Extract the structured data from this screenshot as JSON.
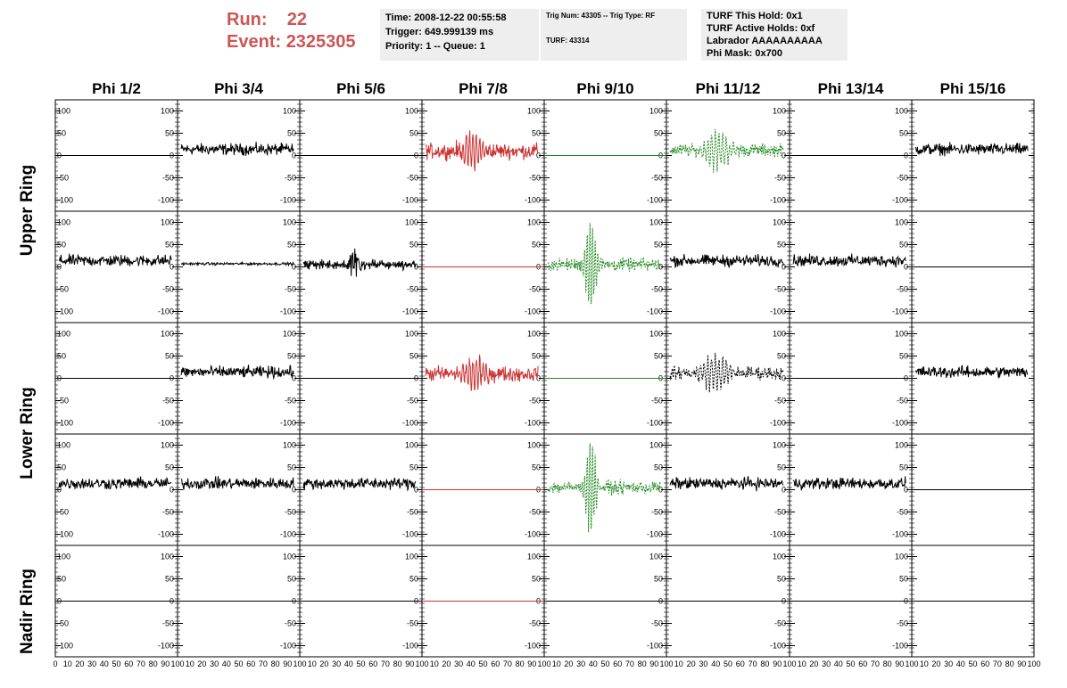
{
  "header": {
    "run_label": "Run:",
    "run_value": "22",
    "event_label": "Event:",
    "event_value": "2325305"
  },
  "time_box": {
    "time": "Time: 2008-12-22 00:55:58",
    "trigger": "Trigger: 649.999139 ms",
    "priority": "Priority: 1 -- Queue: 1"
  },
  "trig_box": {
    "trig": "Trig Num: 43305 -- Trig Type: RF",
    "turf": "TURF: 43314"
  },
  "turf_box": {
    "hold": "TURF This Hold: 0x1",
    "active": "TURF Active Holds: 0xf",
    "labrador": "Labrador AAAAAAAAAA",
    "mask": "Phi Mask: 0x700"
  },
  "chart_data": {
    "type": "line",
    "columns": [
      "Phi 1/2",
      "Phi 3/4",
      "Phi 5/6",
      "Phi 7/8",
      "Phi 9/10",
      "Phi 11/12",
      "Phi 13/14",
      "Phi 15/16"
    ],
    "rows": [
      "Upper Ring",
      "Upper Ring",
      "Lower Ring",
      "Lower Ring",
      "Nadir Ring"
    ],
    "row_labels": [
      "Upper Ring",
      "Lower Ring",
      "Nadir Ring"
    ],
    "xlim": [
      0,
      100
    ],
    "ylim": [
      -125,
      125
    ],
    "y_ticks": [
      -100,
      -50,
      0,
      50,
      100
    ],
    "x_ticks": [
      0,
      10,
      20,
      30,
      40,
      50,
      60,
      70,
      80,
      90,
      100
    ],
    "colors": {
      "normal": "#000000",
      "red": "#cc3333",
      "green": "#228822"
    },
    "panels": [
      [
        "flat",
        "noise",
        "flat",
        "red-noise",
        "green-flat",
        "green-burst",
        "flat",
        "noise"
      ],
      [
        "noise",
        "low-noise",
        "noise-pulse",
        "red-flat",
        "green-burst-large",
        "noise",
        "noise",
        "empty-flat"
      ],
      [
        "flat",
        "noise",
        "flat",
        "red-noise",
        "green-flat",
        "black-dashed-burst",
        "flat",
        "noise"
      ],
      [
        "noise",
        "noise",
        "noise",
        "red-flat",
        "green-burst-large",
        "noise",
        "noise",
        "empty-flat"
      ],
      [
        "flat",
        "flat",
        "flat",
        "red-flat",
        "flat",
        "flat",
        "flat",
        "flat"
      ]
    ]
  }
}
